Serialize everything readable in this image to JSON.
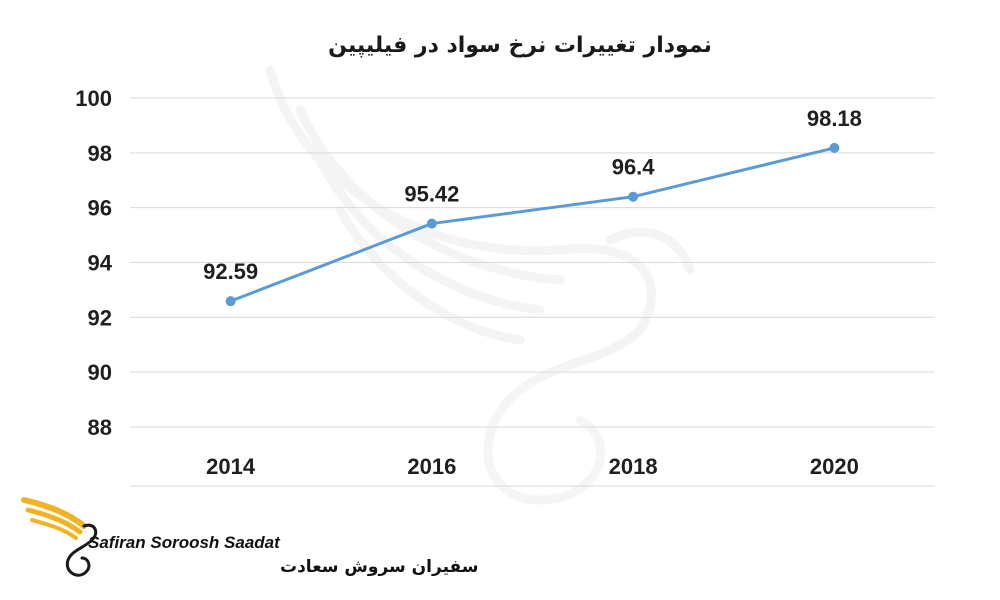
{
  "chart_data": {
    "type": "line",
    "title": "نمودار تغییرات نرخ سواد در فیلیپین",
    "xlabel": "",
    "ylabel": "",
    "categories": [
      "2014",
      "2016",
      "2018",
      "2020"
    ],
    "series": [
      {
        "values": [
          92.59,
          95.42,
          96.4,
          98.18
        ],
        "color": "#5b9bd5"
      }
    ],
    "data_labels": [
      "92.59",
      "95.42",
      "96.4",
      "98.18"
    ],
    "y_ticks": [
      88,
      90,
      92,
      94,
      96,
      98,
      100
    ],
    "ylim": [
      87,
      100
    ],
    "grid": true,
    "legend": "none"
  },
  "logo": {
    "name_en": "Safiran Soroosh Saadat",
    "name_fa": "سفیران سروش سعادت",
    "accent_color": "#f0b323",
    "icon": "winged-swan-logo-icon"
  },
  "watermark": {
    "icon": "swan-wing-watermark-icon"
  }
}
